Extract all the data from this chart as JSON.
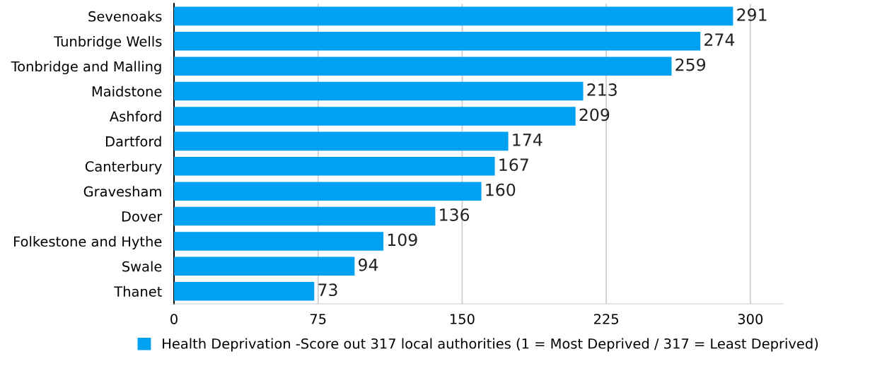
{
  "chart_data": {
    "type": "bar",
    "orientation": "horizontal",
    "categories": [
      "Sevenoaks",
      "Tunbridge Wells",
      "Tonbridge and Malling",
      "Maidstone",
      "Ashford",
      "Dartford",
      "Canterbury",
      "Gravesham",
      "Dover",
      "Folkestone and Hythe",
      "Swale",
      "Thanet"
    ],
    "series": [
      {
        "name": "Health Deprivation -Score out 317 local authorities (1 = Most Deprived / 317 = Least Deprived)",
        "color": "#00a1f1",
        "values": [
          291,
          274,
          259,
          213,
          209,
          174,
          167,
          160,
          136,
          109,
          94,
          73
        ]
      }
    ],
    "xlim": [
      0,
      317
    ],
    "xticks": [
      0,
      75,
      150,
      225,
      300
    ],
    "grid": "x",
    "legend": "bottom",
    "data_labels": true
  }
}
